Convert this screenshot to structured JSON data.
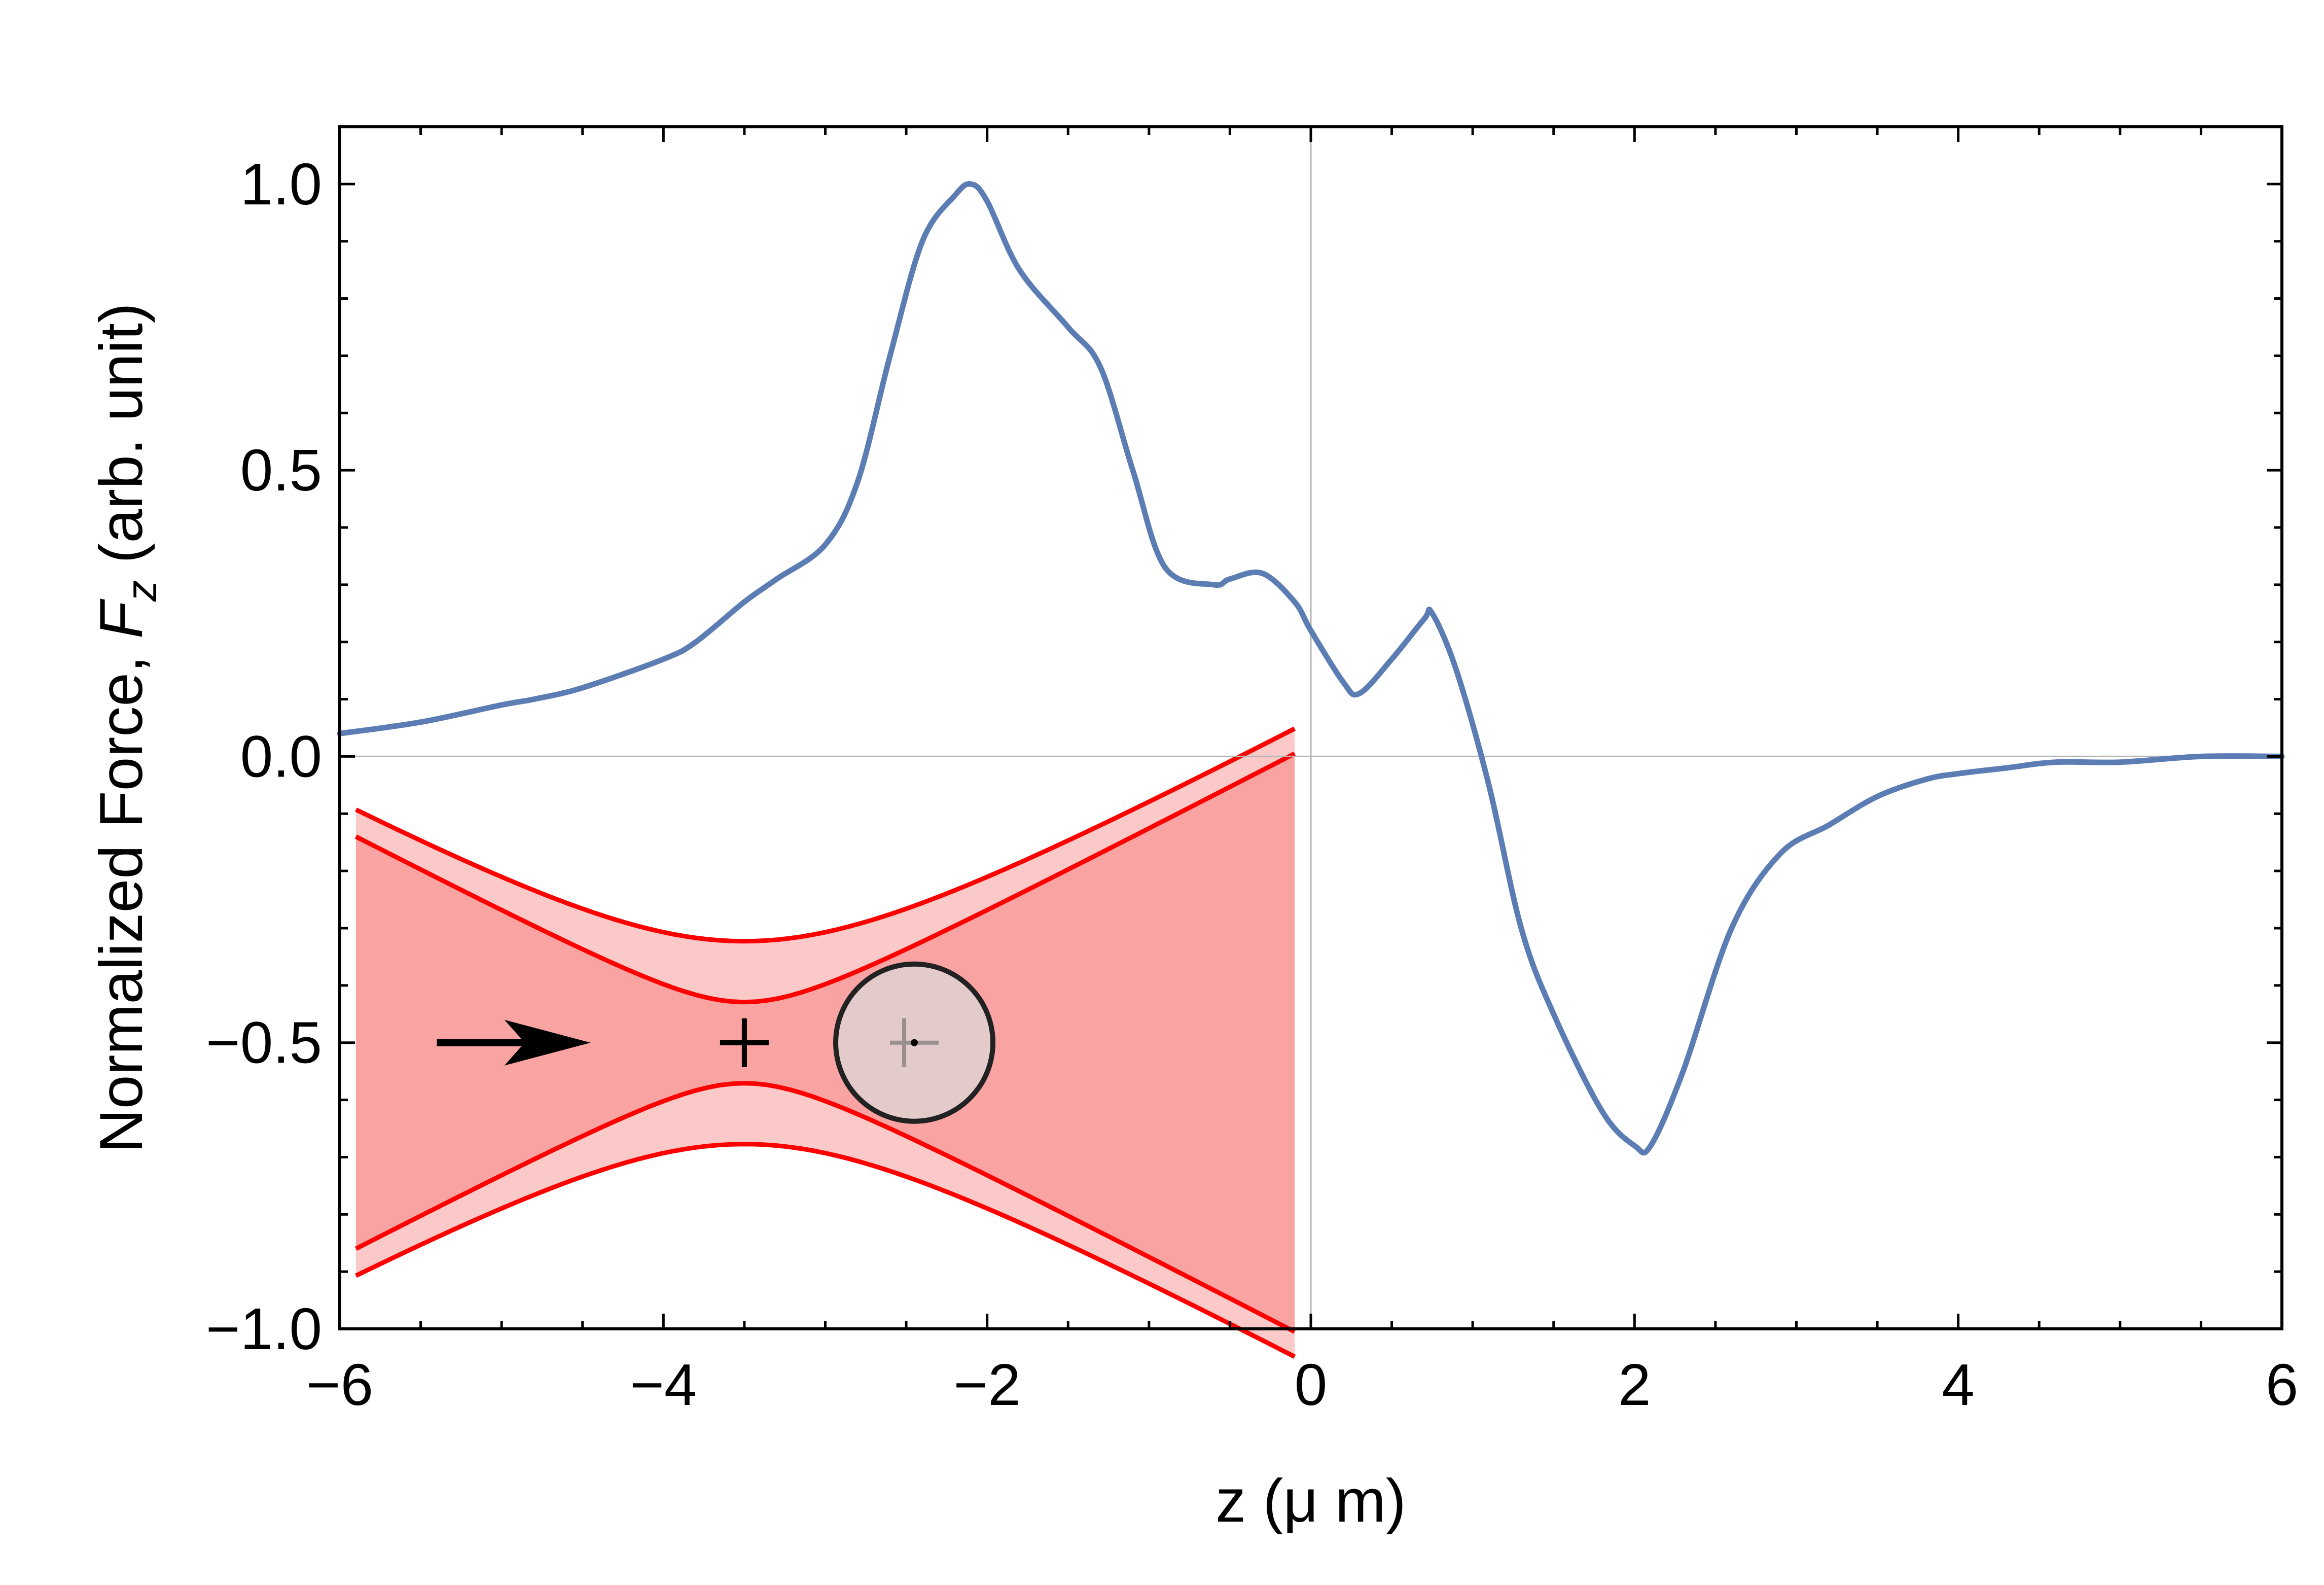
{
  "chart_data": {
    "type": "line",
    "xlabel": "z (μ m)",
    "ylabel": {
      "prefix": "Normalized Force, ",
      "symbol": "F",
      "subscript": "z",
      "suffix": " (arb. unit)"
    },
    "xlim": [
      -6,
      6
    ],
    "ylim": [
      -1.0,
      1.1
    ],
    "xticks": [
      -6,
      -4,
      -2,
      0,
      2,
      4,
      6
    ],
    "xtick_labels": [
      "−6",
      "−4",
      "−2",
      "0",
      "2",
      "4",
      "6"
    ],
    "yticks": [
      -1.0,
      -0.5,
      0.0,
      0.5,
      1.0
    ],
    "ytick_labels": [
      "−1.0",
      "−0.5",
      "0.0",
      "0.5",
      "1.0"
    ],
    "grid": false,
    "reference_lines": {
      "x": 0,
      "y": 0
    },
    "series": [
      {
        "color": "#5b7db3",
        "x": [
          -6.0,
          -5.5,
          -5.0,
          -4.8,
          -4.5,
          -4.0,
          -3.8,
          -3.5,
          -3.3,
          -3.0,
          -2.8,
          -2.6,
          -2.4,
          -2.2,
          -2.1,
          -2.0,
          -1.8,
          -1.5,
          -1.3,
          -1.1,
          -0.9,
          -0.6,
          -0.5,
          -0.3,
          -0.1,
          0.0,
          0.2,
          0.3,
          0.5,
          0.7,
          0.75,
          0.9,
          1.1,
          1.3,
          1.5,
          1.8,
          2.0,
          2.1,
          2.3,
          2.6,
          2.9,
          3.2,
          3.5,
          3.8,
          4.0,
          4.3,
          4.6,
          5.0,
          5.5,
          6.0
        ],
        "y": [
          0.04,
          0.06,
          0.09,
          0.1,
          0.12,
          0.17,
          0.2,
          0.27,
          0.31,
          0.37,
          0.48,
          0.7,
          0.9,
          0.98,
          1.0,
          0.97,
          0.85,
          0.75,
          0.68,
          0.5,
          0.33,
          0.3,
          0.31,
          0.32,
          0.27,
          0.22,
          0.13,
          0.11,
          0.17,
          0.24,
          0.25,
          0.15,
          -0.05,
          -0.3,
          -0.45,
          -0.62,
          -0.68,
          -0.68,
          -0.55,
          -0.3,
          -0.17,
          -0.12,
          -0.07,
          -0.04,
          -0.03,
          -0.02,
          -0.01,
          -0.01,
          0.0,
          0.0
        ]
      }
    ],
    "inset": {
      "description_free": true,
      "beam_fill_outer": "#fcc9c9",
      "beam_fill_inner": "#f9a3a3",
      "beam_line": "#ff0000",
      "particle_fill": "#e0d2d2",
      "particle_stroke": "#222222",
      "arrow_color": "#000000"
    }
  }
}
